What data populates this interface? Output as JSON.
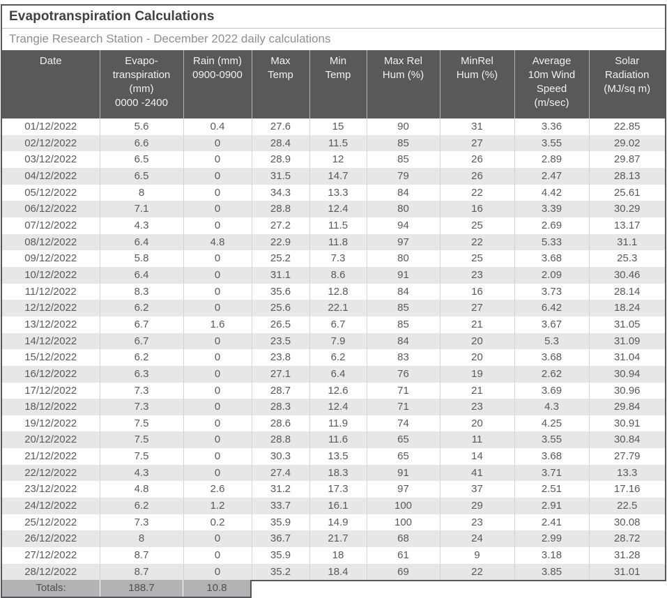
{
  "title": "Evapotranspiration Calculations",
  "subtitle": "Trangie Research Station - December 2022 daily calculations",
  "colors": {
    "frame_border": "#55565a",
    "header_bg": "#58595b",
    "header_text": "#f1f1f2",
    "row_alt_bg": "#e6e7e8",
    "row_bg": "#ffffff",
    "body_text": "#58595b",
    "totals_bg": "#b1b3b5",
    "title_text": "#414042",
    "subtitle_text": "#8d8f92"
  },
  "table": {
    "columns": [
      "Date",
      "Evapo-\ntranspiration\n(mm)\n0000 -2400",
      "Rain (mm)\n0900-0900",
      "Max\nTemp",
      "Min\nTemp",
      "Max Rel\nHum (%)",
      "MinRel\nHum (%)",
      "Average\n10m Wind\nSpeed\n(m/sec)",
      "Solar\nRadiation\n(MJ/sq m)"
    ],
    "rows": [
      [
        "01/12/2022",
        "5.6",
        "0.4",
        "27.6",
        "15",
        "90",
        "31",
        "3.36",
        "22.85"
      ],
      [
        "02/12/2022",
        "6.6",
        "0",
        "28.4",
        "11.5",
        "85",
        "27",
        "3.55",
        "29.02"
      ],
      [
        "03/12/2022",
        "6.5",
        "0",
        "28.9",
        "12",
        "85",
        "26",
        "2.89",
        "29.87"
      ],
      [
        "04/12/2022",
        "6.5",
        "0",
        "31.5",
        "14.7",
        "79",
        "26",
        "2.47",
        "28.13"
      ],
      [
        "05/12/2022",
        "8",
        "0",
        "34.3",
        "13.3",
        "84",
        "22",
        "4.42",
        "25.61"
      ],
      [
        "06/12/2022",
        "7.1",
        "0",
        "28.8",
        "12.4",
        "80",
        "16",
        "3.39",
        "30.29"
      ],
      [
        "07/12/2022",
        "4.3",
        "0",
        "27.2",
        "11.5",
        "94",
        "25",
        "2.69",
        "13.17"
      ],
      [
        "08/12/2022",
        "6.4",
        "4.8",
        "22.9",
        "11.8",
        "97",
        "22",
        "5.33",
        "31.1"
      ],
      [
        "09/12/2022",
        "5.8",
        "0",
        "25.2",
        "7.3",
        "80",
        "25",
        "3.68",
        "25.3"
      ],
      [
        "10/12/2022",
        "6.4",
        "0",
        "31.1",
        "8.6",
        "91",
        "23",
        "2.09",
        "30.46"
      ],
      [
        "11/12/2022",
        "8.3",
        "0",
        "35.6",
        "12.8",
        "84",
        "16",
        "3.73",
        "28.14"
      ],
      [
        "12/12/2022",
        "6.2",
        "0",
        "25.6",
        "22.1",
        "85",
        "27",
        "6.42",
        "18.24"
      ],
      [
        "13/12/2022",
        "6.7",
        "1.6",
        "26.5",
        "6.7",
        "85",
        "21",
        "3.67",
        "31.05"
      ],
      [
        "14/12/2022",
        "6.7",
        "0",
        "23.5",
        "7.9",
        "84",
        "20",
        "5.3",
        "31.09"
      ],
      [
        "15/12/2022",
        "6.2",
        "0",
        "23.8",
        "6.2",
        "83",
        "20",
        "3.68",
        "31.04"
      ],
      [
        "16/12/2022",
        "6.3",
        "0",
        "27.1",
        "6.4",
        "76",
        "19",
        "2.62",
        "30.94"
      ],
      [
        "17/12/2022",
        "7.3",
        "0",
        "28.7",
        "12.6",
        "71",
        "21",
        "3.69",
        "30.96"
      ],
      [
        "18/12/2022",
        "7.3",
        "0",
        "28.3",
        "12.4",
        "71",
        "23",
        "4.3",
        "29.84"
      ],
      [
        "19/12/2022",
        "7.5",
        "0",
        "28.6",
        "11.9",
        "74",
        "20",
        "4.25",
        "30.91"
      ],
      [
        "20/12/2022",
        "7.5",
        "0",
        "28.8",
        "11.6",
        "65",
        "11",
        "3.55",
        "30.84"
      ],
      [
        "21/12/2022",
        "7.5",
        "0",
        "30.3",
        "13.5",
        "65",
        "14",
        "3.68",
        "27.79"
      ],
      [
        "22/12/2022",
        "4.3",
        "0",
        "27.4",
        "18.3",
        "91",
        "41",
        "3.71",
        "13.3"
      ],
      [
        "23/12/2022",
        "4.8",
        "2.6",
        "31.2",
        "17.3",
        "97",
        "37",
        "2.51",
        "17.16"
      ],
      [
        "24/12/2022",
        "6.2",
        "1.2",
        "33.7",
        "16.1",
        "100",
        "29",
        "2.91",
        "22.5"
      ],
      [
        "25/12/2022",
        "7.3",
        "0.2",
        "35.9",
        "14.9",
        "100",
        "23",
        "2.41",
        "30.08"
      ],
      [
        "26/12/2022",
        "8",
        "0",
        "36.7",
        "21.7",
        "68",
        "24",
        "2.99",
        "28.72"
      ],
      [
        "27/12/2022",
        "8.7",
        "0",
        "35.9",
        "18",
        "61",
        "9",
        "3.18",
        "31.28"
      ],
      [
        "28/12/2022",
        "8.7",
        "0",
        "35.2",
        "18.4",
        "69",
        "22",
        "3.85",
        "31.01"
      ]
    ],
    "totals": {
      "label": "Totals:",
      "evapotranspiration": "188.7",
      "rain": "10.8"
    }
  }
}
